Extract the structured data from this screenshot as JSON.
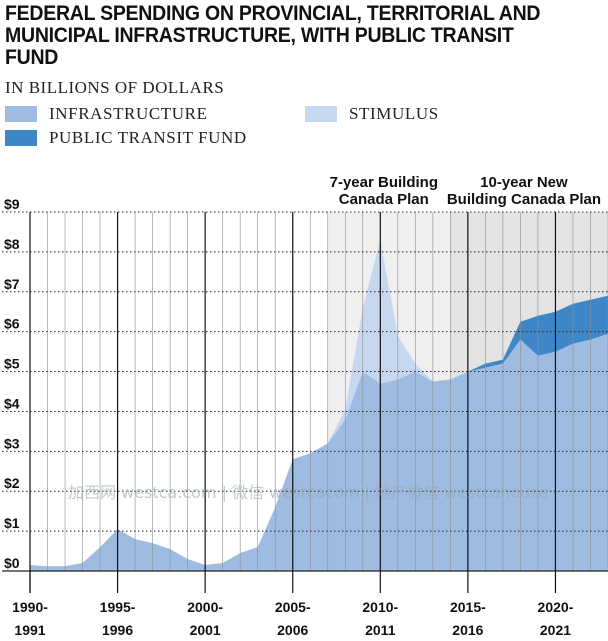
{
  "title": "FEDERAL SPENDING ON PROVINCIAL, TERRITORIAL AND MUNICIPAL INFRASTRUCTURE, WITH PUBLIC TRANSIT FUND",
  "subtitle": "IN BILLIONS OF DOLLARS",
  "legend": [
    {
      "label": "INFRASTRUCTURE",
      "color": "#9ebbe2"
    },
    {
      "label": "STIMULUS",
      "color": "#c6d7ef"
    },
    {
      "label": "PUBLIC TRANSIT FUND",
      "color": "#3d86c8"
    }
  ],
  "watermark": "加西网 westca.com | 微信 westcacom | 地产微信 westcahouse",
  "chart_data": {
    "type": "area",
    "stacked": true,
    "x": [
      1990,
      1991,
      1992,
      1993,
      1994,
      1995,
      1996,
      1997,
      1998,
      1999,
      2000,
      2001,
      2002,
      2003,
      2004,
      2005,
      2006,
      2007,
      2008,
      2009,
      2010,
      2011,
      2012,
      2013,
      2014,
      2015,
      2016,
      2017,
      2018,
      2019,
      2020,
      2021,
      2022,
      2023
    ],
    "series": [
      {
        "name": "INFRASTRUCTURE",
        "color": "#9ebbe2",
        "values": [
          0.15,
          0.12,
          0.12,
          0.2,
          0.6,
          1.05,
          0.8,
          0.7,
          0.55,
          0.3,
          0.15,
          0.2,
          0.45,
          0.6,
          1.6,
          2.8,
          2.95,
          3.2,
          3.8,
          5.0,
          4.7,
          4.8,
          5.0,
          4.75,
          4.8,
          5.0,
          5.1,
          5.2,
          5.8,
          5.4,
          5.5,
          5.7,
          5.8,
          5.95
        ]
      },
      {
        "name": "STIMULUS",
        "color": "#c6d7ef",
        "values": [
          0,
          0,
          0,
          0,
          0,
          0,
          0,
          0,
          0,
          0,
          0,
          0,
          0,
          0,
          0,
          0,
          0,
          0,
          0.25,
          1.6,
          3.6,
          1.1,
          0.2,
          0,
          0,
          0,
          0,
          0,
          0,
          0,
          0,
          0,
          0,
          0
        ]
      },
      {
        "name": "PUBLIC TRANSIT FUND",
        "color": "#3d86c8",
        "values": [
          0,
          0,
          0,
          0,
          0,
          0,
          0,
          0,
          0,
          0,
          0,
          0,
          0,
          0,
          0,
          0,
          0,
          0,
          0,
          0,
          0,
          0,
          0,
          0,
          0,
          0,
          0.1,
          0.1,
          0.45,
          1.0,
          1.0,
          1.0,
          1.0,
          0.95
        ]
      }
    ],
    "ylim": [
      0,
      9
    ],
    "yticks": [
      "$0",
      "$1",
      "$2",
      "$3",
      "$4",
      "$5",
      "$6",
      "$7",
      "$8",
      "$9"
    ],
    "xlim": [
      1990,
      2023
    ],
    "xticks": [
      {
        "top": "1990-",
        "bottom": "1991",
        "year": 1990
      },
      {
        "top": "1995-",
        "bottom": "1996",
        "year": 1995
      },
      {
        "top": "2000-",
        "bottom": "2001",
        "year": 2000
      },
      {
        "top": "2005-",
        "bottom": "2006",
        "year": 2005
      },
      {
        "top": "2010-",
        "bottom": "2011",
        "year": 2010
      },
      {
        "top": "2015-",
        "bottom": "2016",
        "year": 2015
      },
      {
        "top": "2020-",
        "bottom": "2021",
        "year": 2020
      }
    ],
    "periods": [
      {
        "label_lines": [
          "7-year Building",
          "Canada Plan"
        ],
        "start": 2007,
        "end": 2014,
        "shade": "#efefef"
      },
      {
        "label_lines": [
          "10-year New",
          "Building Canada Plan"
        ],
        "start": 2014,
        "end": 2023,
        "shade": "#e3e3e3"
      }
    ],
    "grid": true,
    "legend_position": "top-left"
  }
}
